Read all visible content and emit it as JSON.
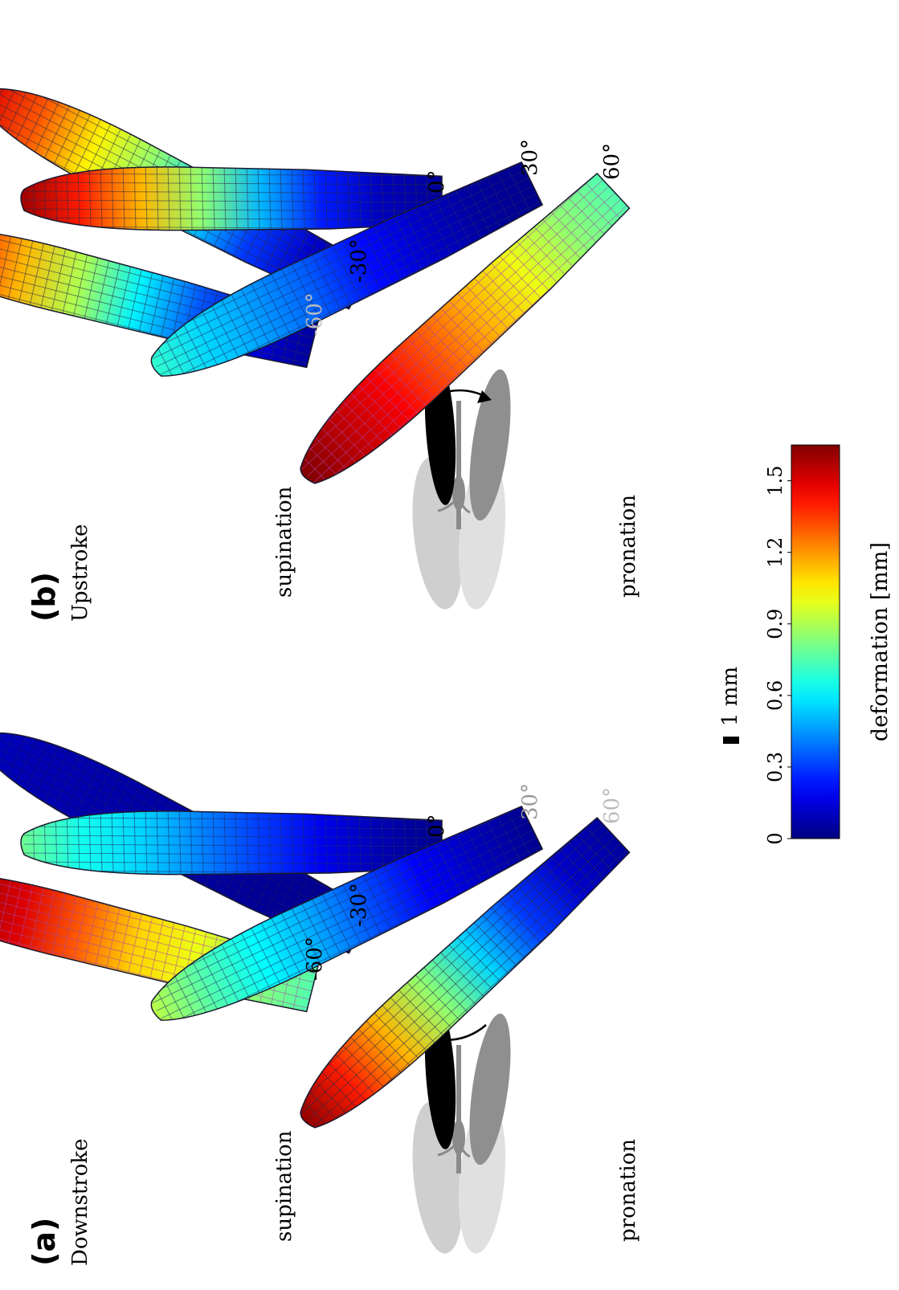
{
  "panels": [
    {
      "label": "(a)",
      "title": "Downstroke",
      "supination_label": "supination",
      "pronation_label": "pronation",
      "wings": [
        {
          "angle": "-60°",
          "label_color": "#000000",
          "color_profile": [
            0.75,
            0.85,
            1.0,
            1.1,
            1.3,
            1.5,
            1.6,
            1.65
          ],
          "vein": "#aa44aa"
        },
        {
          "angle": "-30°",
          "label_color": "#000000",
          "color_profile": [
            0.02,
            0.03,
            0.04,
            0.05,
            0.06,
            0.07,
            0.08,
            0.1
          ],
          "vein": "#16166e"
        },
        {
          "angle": "0°",
          "label_color": "#000000",
          "color_profile": [
            0.02,
            0.08,
            0.18,
            0.3,
            0.42,
            0.55,
            0.65,
            0.8
          ],
          "vein": "#1f2a6a"
        },
        {
          "angle": "30°",
          "label_color": "#999999",
          "color_profile": [
            0.03,
            0.1,
            0.2,
            0.33,
            0.48,
            0.62,
            0.75,
            0.92
          ],
          "vein": "#1f2a6a"
        },
        {
          "angle": "60°",
          "label_color": "#bbbbbb",
          "color_profile": [
            0.05,
            0.12,
            0.3,
            0.55,
            0.85,
            1.15,
            1.4,
            1.62
          ],
          "vein": "#2a2a4a"
        }
      ]
    },
    {
      "label": "(b)",
      "title": "Upstroke",
      "supination_label": "supination",
      "pronation_label": "pronation",
      "wings": [
        {
          "angle": "-60°",
          "label_color": "#bbbbbb",
          "color_profile": [
            0.05,
            0.15,
            0.35,
            0.6,
            0.9,
            1.15,
            1.4,
            1.62
          ],
          "vein": "#2a2a4a"
        },
        {
          "angle": "-30°",
          "label_color": "#000000",
          "color_profile": [
            0.04,
            0.12,
            0.3,
            0.55,
            0.85,
            1.05,
            1.3,
            1.5
          ],
          "vein": "#2a2a4a"
        },
        {
          "angle": "0°",
          "label_color": "#000000",
          "color_profile": [
            0.04,
            0.1,
            0.25,
            0.5,
            0.85,
            1.15,
            1.4,
            1.6
          ],
          "vein": "#2a2a4a"
        },
        {
          "angle": "30°",
          "label_color": "#000000",
          "color_profile": [
            0.02,
            0.05,
            0.12,
            0.22,
            0.35,
            0.45,
            0.55,
            0.7
          ],
          "vein": "#1f2a6a"
        },
        {
          "angle": "60°",
          "label_color": "#000000",
          "color_profile": [
            0.75,
            0.85,
            1.0,
            1.15,
            1.3,
            1.45,
            1.55,
            1.65
          ],
          "vein": "#aa44aa"
        }
      ]
    }
  ],
  "scale_bar_label": "1 mm",
  "colorbar": {
    "title": "deformation [mm]",
    "ticks": [
      "0",
      "0.3",
      "0.6",
      "0.9",
      "1.2",
      "1.5"
    ],
    "min": 0,
    "max": 1.65,
    "colormap": "jet"
  }
}
